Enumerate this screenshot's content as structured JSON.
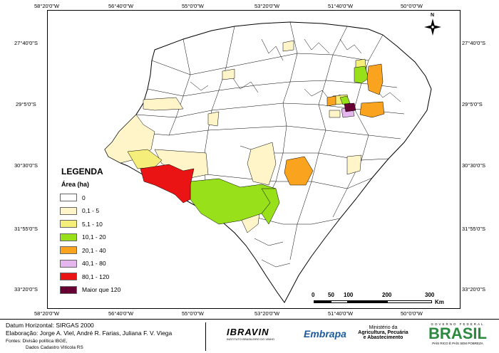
{
  "legend": {
    "title": "LEGENDA",
    "subtitle": "Área (ha)",
    "items": [
      {
        "label": "0",
        "color": "#ffffff"
      },
      {
        "label": "0,1 - 5",
        "color": "#fff5c8"
      },
      {
        "label": "5,1 - 10",
        "color": "#f6ee7a"
      },
      {
        "label": "10,1 - 20",
        "color": "#97e01a"
      },
      {
        "label": "20,1 - 40",
        "color": "#f9a31e"
      },
      {
        "label": "40,1 - 80",
        "color": "#e5b5ee"
      },
      {
        "label": "80,1 - 120",
        "color": "#ea1414"
      },
      {
        "label": "Maior que 120",
        "color": "#660033"
      }
    ]
  },
  "coords": {
    "top": [
      "58°20'0\"W",
      "56°40'0\"W",
      "55°0'0\"W",
      "53°20'0\"W",
      "51°40'0\"W",
      "50°0'0\"W"
    ],
    "bottom": [
      "58°20'0\"W",
      "56°40'0\"W",
      "55°0'0\"W",
      "53°20'0\"W",
      "51°40'0\"W",
      "50°0'0\"W"
    ],
    "left": [
      "27°40'0\"S",
      "29°5'0\"S",
      "30°30'0\"S",
      "31°55'0\"S",
      "33°20'0\"S"
    ],
    "right": [
      "27°40'0\"S",
      "29°5'0\"S",
      "30°30'0\"S",
      "31°55'0\"S",
      "33°20'0\"S"
    ]
  },
  "scale": {
    "ticks": [
      "0",
      "50",
      "100",
      "200",
      "300"
    ],
    "unit": "Km"
  },
  "north": "N",
  "footer": {
    "datum": "Datum Horizontal: SIRGAS 2000",
    "authors": "Elaboração: Jorge A. Viel, André R. Farias, Juliana F. V. Viega",
    "source1": "Fontes: Divisão política IBGE,",
    "source2": "Dados Cadastro Vitícola RS",
    "ibravin": "IBRAVIN",
    "ibravin_sub": "INSTITUTO BRASILEIRO DO VINHO",
    "embrapa": "Embrapa",
    "ministry1": "Ministério da",
    "ministry2": "Agricultura, Pecuária",
    "ministry3": "e Abastecimento",
    "gov_top": "GOVERNO FEDERAL",
    "brasil": "BRASIL",
    "brasil_sub": "PAÍS RICO É PAÍS SEM POBREZA"
  }
}
